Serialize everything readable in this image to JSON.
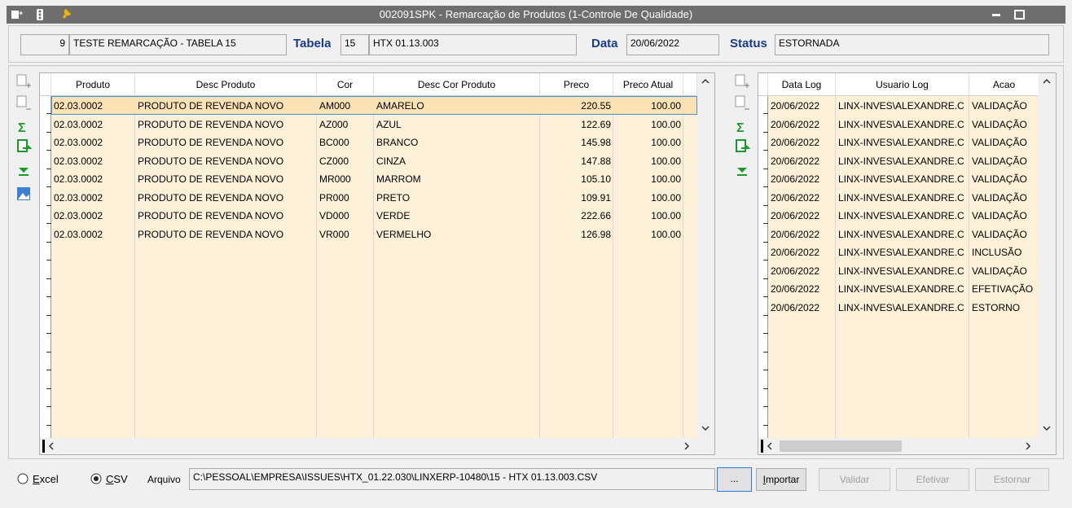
{
  "window": {
    "title": "002091SPK - Remarcação de Produtos (1-Controle De Qualidade)"
  },
  "header": {
    "code": "9",
    "description": "TESTE REMARCAÇÃO - TABELA 15",
    "tabela_label": "Tabela",
    "tabela_code": "15",
    "tabela_name": "HTX 01.13.003",
    "data_label": "Data",
    "data": "20/06/2022",
    "status_label": "Status",
    "status": "ESTORNADA"
  },
  "products": {
    "columns": [
      "Produto",
      "Desc Produto",
      "Cor",
      "Desc Cor Produto",
      "Preco",
      "Preco Atual"
    ],
    "rows": [
      [
        "02.03.0002",
        "PRODUTO DE REVENDA NOVO",
        "AM000",
        "AMARELO",
        "220.55",
        "100.00"
      ],
      [
        "02.03.0002",
        "PRODUTO DE REVENDA NOVO",
        "AZ000",
        "AZUL",
        "122.69",
        "100.00"
      ],
      [
        "02.03.0002",
        "PRODUTO DE REVENDA NOVO",
        "BC000",
        "BRANCO",
        "145.98",
        "100.00"
      ],
      [
        "02.03.0002",
        "PRODUTO DE REVENDA NOVO",
        "CZ000",
        "CINZA",
        "147.88",
        "100.00"
      ],
      [
        "02.03.0002",
        "PRODUTO DE REVENDA NOVO",
        "MR000",
        "MARROM",
        "105.10",
        "100.00"
      ],
      [
        "02.03.0002",
        "PRODUTO DE REVENDA NOVO",
        "PR000",
        "PRETO",
        "109.91",
        "100.00"
      ],
      [
        "02.03.0002",
        "PRODUTO DE REVENDA NOVO",
        "VD000",
        "VERDE",
        "222.66",
        "100.00"
      ],
      [
        "02.03.0002",
        "PRODUTO DE REVENDA NOVO",
        "VR000",
        "VERMELHO",
        "126.98",
        "100.00"
      ]
    ]
  },
  "log": {
    "columns": [
      "Data Log",
      "Usuario Log",
      "Acao"
    ],
    "rows": [
      [
        "20/06/2022",
        "LINX-INVES\\ALEXANDRE.C",
        "VALIDAÇÃO"
      ],
      [
        "20/06/2022",
        "LINX-INVES\\ALEXANDRE.C",
        "VALIDAÇÃO"
      ],
      [
        "20/06/2022",
        "LINX-INVES\\ALEXANDRE.C",
        "VALIDAÇÃO"
      ],
      [
        "20/06/2022",
        "LINX-INVES\\ALEXANDRE.C",
        "VALIDAÇÃO"
      ],
      [
        "20/06/2022",
        "LINX-INVES\\ALEXANDRE.C",
        "VALIDAÇÃO"
      ],
      [
        "20/06/2022",
        "LINX-INVES\\ALEXANDRE.C",
        "VALIDAÇÃO"
      ],
      [
        "20/06/2022",
        "LINX-INVES\\ALEXANDRE.C",
        "VALIDAÇÃO"
      ],
      [
        "20/06/2022",
        "LINX-INVES\\ALEXANDRE.C",
        "VALIDAÇÃO"
      ],
      [
        "20/06/2022",
        "LINX-INVES\\ALEXANDRE.C",
        "INCLUSÃO"
      ],
      [
        "20/06/2022",
        "LINX-INVES\\ALEXANDRE.C",
        "VALIDAÇÃO"
      ],
      [
        "20/06/2022",
        "LINX-INVES\\ALEXANDRE.C",
        "EFETIVAÇÃO"
      ],
      [
        "20/06/2022",
        "LINX-INVES\\ALEXANDRE.C",
        "ESTORNO"
      ]
    ]
  },
  "footer": {
    "excel": "Excel",
    "csv": "CSV",
    "arquivo_label": "Arquivo",
    "arquivo": "C:\\PESSOAL\\EMPRESA\\ISSUES\\HTX_01.22.030\\LINXERP-10480\\15 - HTX 01.13.003.CSV",
    "browse": "...",
    "importar": "Importar",
    "validar": "Validar",
    "efetivar": "Efetivar",
    "estornar": "Estornar"
  }
}
